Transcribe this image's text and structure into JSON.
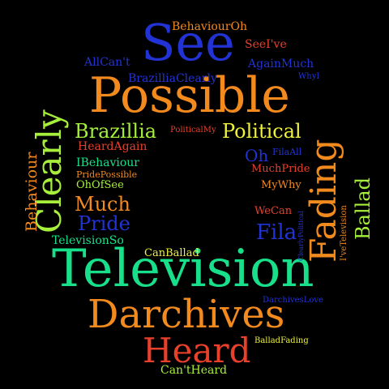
{
  "colors": {
    "background": "#000000",
    "orange": "#f28a1e",
    "blue": "#2233d6",
    "green": "#18e08a",
    "red": "#e8402a",
    "yellow": "#eef23a",
    "lime": "#a6ef3a"
  },
  "words": [
    {
      "id": "see",
      "text": "See",
      "color": "#2233d6"
    },
    {
      "id": "possible",
      "text": "Possible",
      "color": "#f28a1e"
    },
    {
      "id": "television",
      "text": "Television",
      "color": "#18e08a"
    },
    {
      "id": "darchives",
      "text": "Darchives",
      "color": "#f28a1e"
    },
    {
      "id": "heard",
      "text": "Heard",
      "color": "#e8402a"
    },
    {
      "id": "clearly",
      "text": "Clearly",
      "color": "#a6ef3a"
    },
    {
      "id": "fading",
      "text": "Fading",
      "color": "#f28a1e"
    },
    {
      "id": "brazillia",
      "text": "Brazillia",
      "color": "#a6ef3a"
    },
    {
      "id": "political",
      "text": "Political",
      "color": "#eef23a"
    },
    {
      "id": "much",
      "text": "Much",
      "color": "#f28a1e"
    },
    {
      "id": "pride",
      "text": "Pride",
      "color": "#2233d6"
    },
    {
      "id": "fila",
      "text": "Fila",
      "color": "#2233d6"
    },
    {
      "id": "ballad",
      "text": "Ballad",
      "color": "#a6ef3a"
    },
    {
      "id": "behaviour",
      "text": "Behaviour",
      "color": "#f28a1e"
    },
    {
      "id": "oh",
      "text": "Oh",
      "color": "#2233d6"
    },
    {
      "id": "behaviouroh",
      "text": "BehaviourOh",
      "color": "#f28a1e"
    },
    {
      "id": "seeive",
      "text": "SeeI've",
      "color": "#e8402a"
    },
    {
      "id": "allcant",
      "text": "AllCan't",
      "color": "#2233d6"
    },
    {
      "id": "againmuch",
      "text": "AgainMuch",
      "color": "#2233d6"
    },
    {
      "id": "brazilliaclearly",
      "text": "BrazilliaClearly",
      "color": "#2233d6"
    },
    {
      "id": "whyi",
      "text": "WhyI",
      "color": "#2233d6"
    },
    {
      "id": "politicalmy",
      "text": "PoliticalMy",
      "color": "#e8402a"
    },
    {
      "id": "heardagain",
      "text": "HeardAgain",
      "color": "#e8402a"
    },
    {
      "id": "filaall",
      "text": "FilaAll",
      "color": "#2233d6"
    },
    {
      "id": "ibehaviour",
      "text": "IBehaviour",
      "color": "#18e08a"
    },
    {
      "id": "pridepossible",
      "text": "PridePossible",
      "color": "#f28a1e"
    },
    {
      "id": "muchpride",
      "text": "MuchPride",
      "color": "#e8402a"
    },
    {
      "id": "ohofsee",
      "text": "OhOfSee",
      "color": "#a6ef3a"
    },
    {
      "id": "mywhy",
      "text": "MyWhy",
      "color": "#f28a1e"
    },
    {
      "id": "wecan",
      "text": "WeCan",
      "color": "#e8402a"
    },
    {
      "id": "clearlypolitical",
      "text": "ClearlyPolitical",
      "color": "#2233d6"
    },
    {
      "id": "ivetelevision",
      "text": "I'veTelevision",
      "color": "#f28a1e"
    },
    {
      "id": "televisionso",
      "text": "TelevisionSo",
      "color": "#18e08a"
    },
    {
      "id": "canballad",
      "text": "CanBallad",
      "color": "#eef23a"
    },
    {
      "id": "darchiveslove",
      "text": "DarchivesLove",
      "color": "#2233d6"
    },
    {
      "id": "balladfading",
      "text": "BalladFading",
      "color": "#eef23a"
    },
    {
      "id": "cantheard",
      "text": "Can'tHeard",
      "color": "#a6ef3a"
    }
  ]
}
